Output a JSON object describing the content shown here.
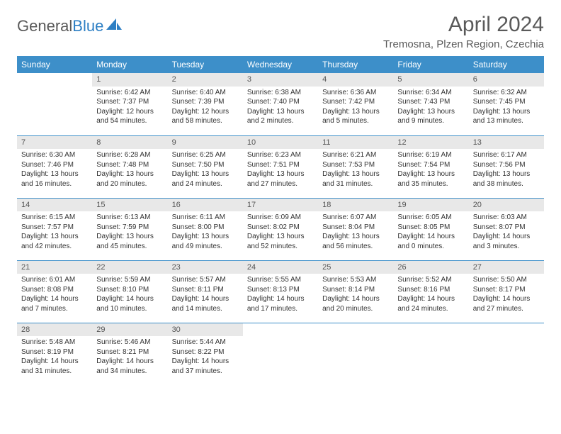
{
  "logo": {
    "text1": "General",
    "text2": "Blue"
  },
  "title": "April 2024",
  "location": "Tremosna, Plzen Region, Czechia",
  "colors": {
    "header_bg": "#3d8fc9",
    "header_fg": "#ffffff",
    "daynum_bg": "#e8e8e8",
    "text": "#333333",
    "rule": "#3d8fc9"
  },
  "daysOfWeek": [
    "Sunday",
    "Monday",
    "Tuesday",
    "Wednesday",
    "Thursday",
    "Friday",
    "Saturday"
  ],
  "grid": [
    [
      null,
      {
        "n": "1",
        "sr": "Sunrise: 6:42 AM",
        "ss": "Sunset: 7:37 PM",
        "d1": "Daylight: 12 hours",
        "d2": "and 54 minutes."
      },
      {
        "n": "2",
        "sr": "Sunrise: 6:40 AM",
        "ss": "Sunset: 7:39 PM",
        "d1": "Daylight: 12 hours",
        "d2": "and 58 minutes."
      },
      {
        "n": "3",
        "sr": "Sunrise: 6:38 AM",
        "ss": "Sunset: 7:40 PM",
        "d1": "Daylight: 13 hours",
        "d2": "and 2 minutes."
      },
      {
        "n": "4",
        "sr": "Sunrise: 6:36 AM",
        "ss": "Sunset: 7:42 PM",
        "d1": "Daylight: 13 hours",
        "d2": "and 5 minutes."
      },
      {
        "n": "5",
        "sr": "Sunrise: 6:34 AM",
        "ss": "Sunset: 7:43 PM",
        "d1": "Daylight: 13 hours",
        "d2": "and 9 minutes."
      },
      {
        "n": "6",
        "sr": "Sunrise: 6:32 AM",
        "ss": "Sunset: 7:45 PM",
        "d1": "Daylight: 13 hours",
        "d2": "and 13 minutes."
      }
    ],
    [
      {
        "n": "7",
        "sr": "Sunrise: 6:30 AM",
        "ss": "Sunset: 7:46 PM",
        "d1": "Daylight: 13 hours",
        "d2": "and 16 minutes."
      },
      {
        "n": "8",
        "sr": "Sunrise: 6:28 AM",
        "ss": "Sunset: 7:48 PM",
        "d1": "Daylight: 13 hours",
        "d2": "and 20 minutes."
      },
      {
        "n": "9",
        "sr": "Sunrise: 6:25 AM",
        "ss": "Sunset: 7:50 PM",
        "d1": "Daylight: 13 hours",
        "d2": "and 24 minutes."
      },
      {
        "n": "10",
        "sr": "Sunrise: 6:23 AM",
        "ss": "Sunset: 7:51 PM",
        "d1": "Daylight: 13 hours",
        "d2": "and 27 minutes."
      },
      {
        "n": "11",
        "sr": "Sunrise: 6:21 AM",
        "ss": "Sunset: 7:53 PM",
        "d1": "Daylight: 13 hours",
        "d2": "and 31 minutes."
      },
      {
        "n": "12",
        "sr": "Sunrise: 6:19 AM",
        "ss": "Sunset: 7:54 PM",
        "d1": "Daylight: 13 hours",
        "d2": "and 35 minutes."
      },
      {
        "n": "13",
        "sr": "Sunrise: 6:17 AM",
        "ss": "Sunset: 7:56 PM",
        "d1": "Daylight: 13 hours",
        "d2": "and 38 minutes."
      }
    ],
    [
      {
        "n": "14",
        "sr": "Sunrise: 6:15 AM",
        "ss": "Sunset: 7:57 PM",
        "d1": "Daylight: 13 hours",
        "d2": "and 42 minutes."
      },
      {
        "n": "15",
        "sr": "Sunrise: 6:13 AM",
        "ss": "Sunset: 7:59 PM",
        "d1": "Daylight: 13 hours",
        "d2": "and 45 minutes."
      },
      {
        "n": "16",
        "sr": "Sunrise: 6:11 AM",
        "ss": "Sunset: 8:00 PM",
        "d1": "Daylight: 13 hours",
        "d2": "and 49 minutes."
      },
      {
        "n": "17",
        "sr": "Sunrise: 6:09 AM",
        "ss": "Sunset: 8:02 PM",
        "d1": "Daylight: 13 hours",
        "d2": "and 52 minutes."
      },
      {
        "n": "18",
        "sr": "Sunrise: 6:07 AM",
        "ss": "Sunset: 8:04 PM",
        "d1": "Daylight: 13 hours",
        "d2": "and 56 minutes."
      },
      {
        "n": "19",
        "sr": "Sunrise: 6:05 AM",
        "ss": "Sunset: 8:05 PM",
        "d1": "Daylight: 14 hours",
        "d2": "and 0 minutes."
      },
      {
        "n": "20",
        "sr": "Sunrise: 6:03 AM",
        "ss": "Sunset: 8:07 PM",
        "d1": "Daylight: 14 hours",
        "d2": "and 3 minutes."
      }
    ],
    [
      {
        "n": "21",
        "sr": "Sunrise: 6:01 AM",
        "ss": "Sunset: 8:08 PM",
        "d1": "Daylight: 14 hours",
        "d2": "and 7 minutes."
      },
      {
        "n": "22",
        "sr": "Sunrise: 5:59 AM",
        "ss": "Sunset: 8:10 PM",
        "d1": "Daylight: 14 hours",
        "d2": "and 10 minutes."
      },
      {
        "n": "23",
        "sr": "Sunrise: 5:57 AM",
        "ss": "Sunset: 8:11 PM",
        "d1": "Daylight: 14 hours",
        "d2": "and 14 minutes."
      },
      {
        "n": "24",
        "sr": "Sunrise: 5:55 AM",
        "ss": "Sunset: 8:13 PM",
        "d1": "Daylight: 14 hours",
        "d2": "and 17 minutes."
      },
      {
        "n": "25",
        "sr": "Sunrise: 5:53 AM",
        "ss": "Sunset: 8:14 PM",
        "d1": "Daylight: 14 hours",
        "d2": "and 20 minutes."
      },
      {
        "n": "26",
        "sr": "Sunrise: 5:52 AM",
        "ss": "Sunset: 8:16 PM",
        "d1": "Daylight: 14 hours",
        "d2": "and 24 minutes."
      },
      {
        "n": "27",
        "sr": "Sunrise: 5:50 AM",
        "ss": "Sunset: 8:17 PM",
        "d1": "Daylight: 14 hours",
        "d2": "and 27 minutes."
      }
    ],
    [
      {
        "n": "28",
        "sr": "Sunrise: 5:48 AM",
        "ss": "Sunset: 8:19 PM",
        "d1": "Daylight: 14 hours",
        "d2": "and 31 minutes."
      },
      {
        "n": "29",
        "sr": "Sunrise: 5:46 AM",
        "ss": "Sunset: 8:21 PM",
        "d1": "Daylight: 14 hours",
        "d2": "and 34 minutes."
      },
      {
        "n": "30",
        "sr": "Sunrise: 5:44 AM",
        "ss": "Sunset: 8:22 PM",
        "d1": "Daylight: 14 hours",
        "d2": "and 37 minutes."
      },
      null,
      null,
      null,
      null
    ]
  ]
}
